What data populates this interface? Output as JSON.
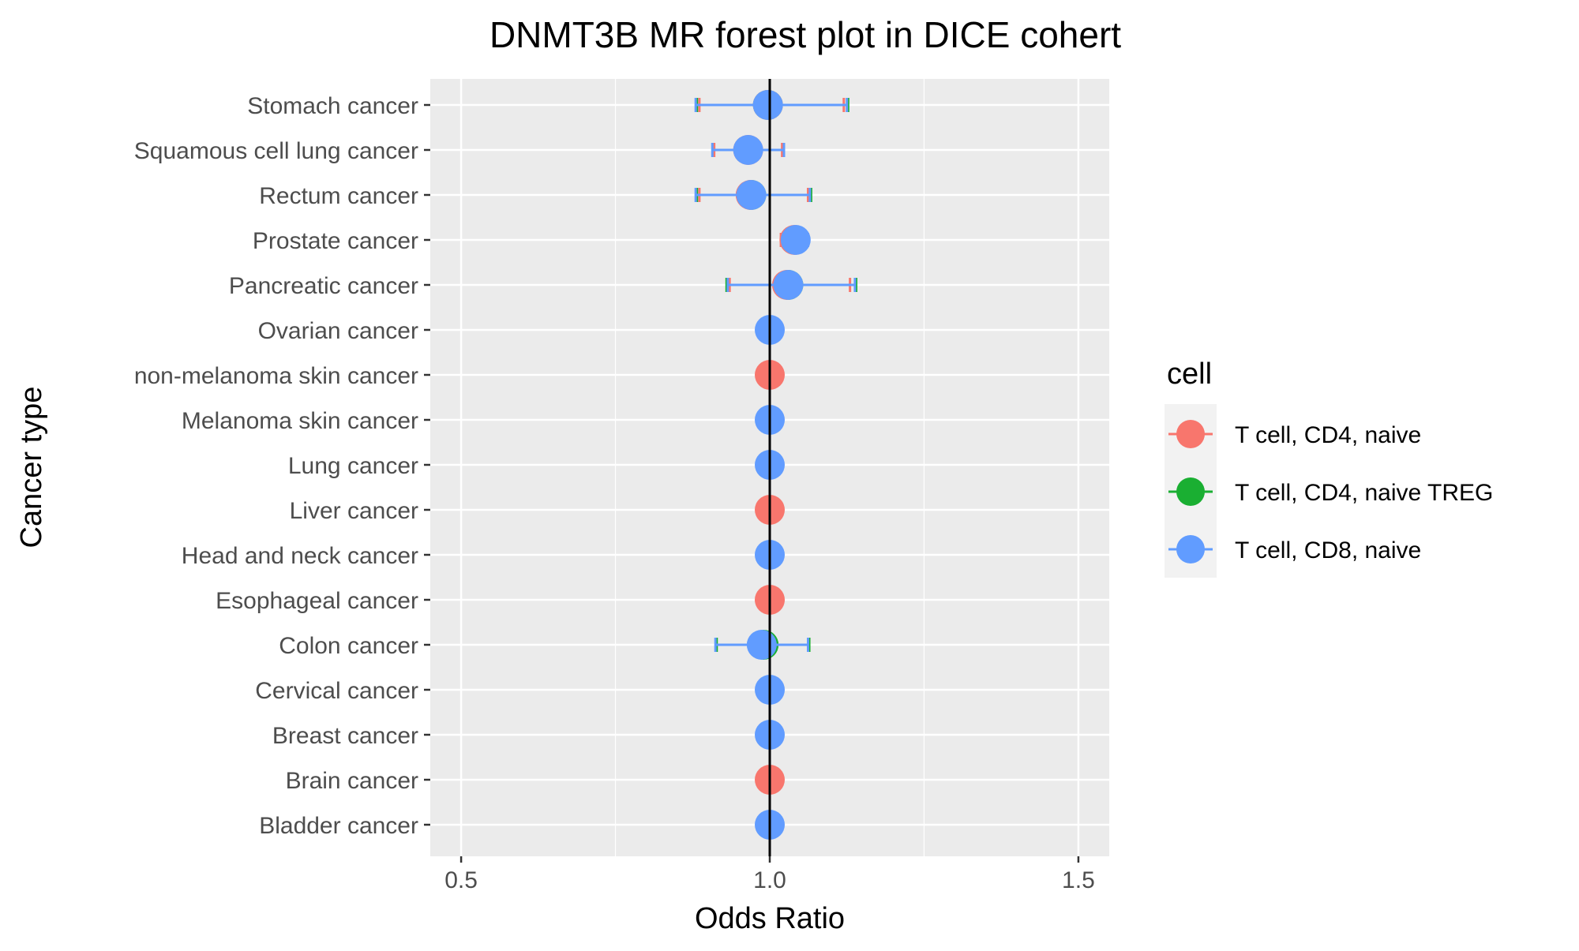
{
  "chart_data": {
    "type": "forest",
    "title": "DNMT3B MR forest plot in DICE cohert",
    "xlabel": "Odds Ratio",
    "ylabel": "Cancer type",
    "xlim": [
      0.45,
      1.55
    ],
    "xticks": [
      "0.5",
      "1.0",
      "1.5"
    ],
    "reference_line": 1.0,
    "grid": true,
    "legend": {
      "title": "cell",
      "placement": "right"
    },
    "categories": [
      "Stomach cancer",
      "Squamous cell lung cancer",
      "Rectum cancer",
      "Prostate cancer",
      "Pancreatic cancer",
      "Ovarian cancer",
      "non-melanoma skin cancer",
      "Melanoma skin cancer",
      "Lung cancer",
      "Liver cancer",
      "Head and neck cancer",
      "Esophageal cancer",
      "Colon cancer",
      "Cervical cancer",
      "Breast cancer",
      "Brain cancer",
      "Bladder cancer"
    ],
    "series": [
      {
        "name": "T cell, CD4, naive TREG",
        "color": "#1aaf32",
        "points": [
          {
            "category": "Stomach cancer",
            "or": 0.997,
            "lower": 0.882,
            "upper": 1.127
          },
          {
            "category": "Rectum cancer",
            "or": 0.97,
            "lower": 0.882,
            "upper": 1.067
          },
          {
            "category": "Pancreatic cancer",
            "or": 1.03,
            "lower": 0.93,
            "upper": 1.14
          },
          {
            "category": "Colon cancer",
            "or": 0.99,
            "lower": 0.914,
            "upper": 1.064
          }
        ]
      },
      {
        "name": "T cell, CD4, naive",
        "color": "#f8766d",
        "points": [
          {
            "category": "Stomach cancer",
            "or": 0.997,
            "lower": 0.886,
            "upper": 1.12
          },
          {
            "category": "Squamous cell lung cancer",
            "or": 0.965,
            "lower": 0.91,
            "upper": 1.02
          },
          {
            "category": "Rectum cancer",
            "or": 0.969,
            "lower": 0.886,
            "upper": 1.062
          },
          {
            "category": "Prostate cancer",
            "or": 1.04,
            "lower": 1.018,
            "upper": 1.062
          },
          {
            "category": "Pancreatic cancer",
            "or": 1.028,
            "lower": 0.935,
            "upper": 1.13
          },
          {
            "category": "non-melanoma skin cancer",
            "or": 1.0,
            "lower": 1.0,
            "upper": 1.0
          },
          {
            "category": "Liver cancer",
            "or": 1.0,
            "lower": 1.0,
            "upper": 1.0
          },
          {
            "category": "Esophageal cancer",
            "or": 1.0,
            "lower": 1.0,
            "upper": 1.0
          },
          {
            "category": "Brain cancer",
            "or": 1.0,
            "lower": 1.0,
            "upper": 1.0
          }
        ]
      },
      {
        "name": "T cell, CD8, naive",
        "color": "#619cff",
        "points": [
          {
            "category": "Stomach cancer",
            "or": 0.997,
            "lower": 0.88,
            "upper": 1.125
          },
          {
            "category": "Squamous cell lung cancer",
            "or": 0.965,
            "lower": 0.907,
            "upper": 1.023
          },
          {
            "category": "Rectum cancer",
            "or": 0.97,
            "lower": 0.88,
            "upper": 1.065
          },
          {
            "category": "Prostate cancer",
            "or": 1.042,
            "lower": 1.022,
            "upper": 1.062
          },
          {
            "category": "Pancreatic cancer",
            "or": 1.03,
            "lower": 0.932,
            "upper": 1.138
          },
          {
            "category": "Ovarian cancer",
            "or": 1.0,
            "lower": 1.0,
            "upper": 1.0
          },
          {
            "category": "Melanoma skin cancer",
            "or": 1.0,
            "lower": 1.0,
            "upper": 1.0
          },
          {
            "category": "Lung cancer",
            "or": 1.0,
            "lower": 1.0,
            "upper": 1.0
          },
          {
            "category": "Head and neck cancer",
            "or": 1.0,
            "lower": 1.0,
            "upper": 1.0
          },
          {
            "category": "Colon cancer",
            "or": 0.987,
            "lower": 0.912,
            "upper": 1.062
          },
          {
            "category": "Cervical cancer",
            "or": 1.0,
            "lower": 1.0,
            "upper": 1.0
          },
          {
            "category": "Breast cancer",
            "or": 1.0,
            "lower": 1.0,
            "upper": 1.0
          },
          {
            "category": "Bladder cancer",
            "or": 1.0,
            "lower": 1.0,
            "upper": 1.0
          }
        ]
      }
    ],
    "legend_items": [
      {
        "label": "T cell, CD4, naive",
        "color": "#f8766d"
      },
      {
        "label": "T cell, CD4, naive TREG",
        "color": "#1aaf32"
      },
      {
        "label": "T cell, CD8, naive",
        "color": "#619cff"
      }
    ]
  }
}
